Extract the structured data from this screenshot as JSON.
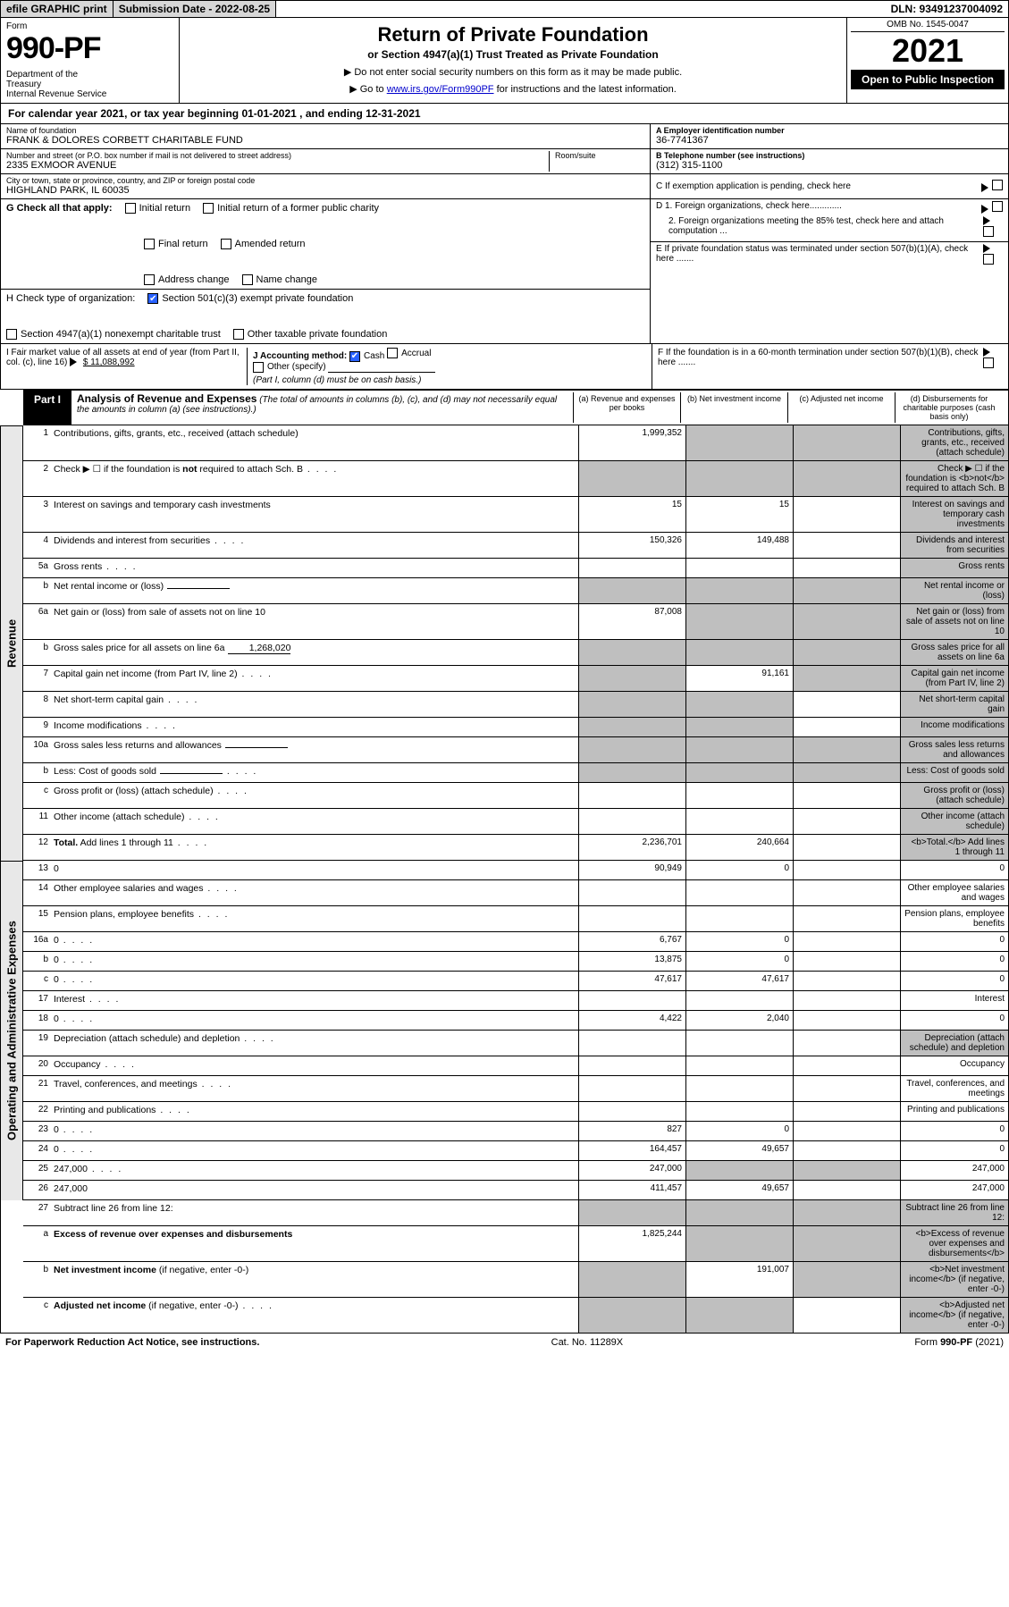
{
  "topbar": {
    "efile": "efile GRAPHIC print",
    "submission_label": "Submission Date - 2022-08-25",
    "dln": "DLN: 93491237004092"
  },
  "header": {
    "form_label": "Form",
    "form_number": "990-PF",
    "dept": "Department of the Treasury\nInternal Revenue Service",
    "title": "Return of Private Foundation",
    "subtitle": "or Section 4947(a)(1) Trust Treated as Private Foundation",
    "note1": "▶ Do not enter social security numbers on this form as it may be made public.",
    "note2_prefix": "▶ Go to ",
    "note2_link": "www.irs.gov/Form990PF",
    "note2_suffix": " for instructions and the latest information.",
    "omb": "OMB No. 1545-0047",
    "year": "2021",
    "open_public": "Open to Public Inspection"
  },
  "cal_year": "For calendar year 2021, or tax year beginning 01-01-2021             , and ending 12-31-2021",
  "id": {
    "name_lbl": "Name of foundation",
    "name": "FRANK & DOLORES CORBETT CHARITABLE FUND",
    "addr_lbl": "Number and street (or P.O. box number if mail is not delivered to street address)",
    "addr": "2335 EXMOOR AVENUE",
    "room_lbl": "Room/suite",
    "city_lbl": "City or town, state or province, country, and ZIP or foreign postal code",
    "city": "HIGHLAND PARK, IL  60035",
    "a_lbl": "A Employer identification number",
    "a_val": "36-7741367",
    "b_lbl": "B Telephone number (see instructions)",
    "b_val": "(312) 315-1100",
    "c_lbl": "C If exemption application is pending, check here",
    "d1_lbl": "D 1. Foreign organizations, check here.............",
    "d2_lbl": "2. Foreign organizations meeting the 85% test, check here and attach computation ...",
    "e_lbl": "E  If private foundation status was terminated under section 507(b)(1)(A), check here .......",
    "f_lbl": "F  If the foundation is in a 60-month termination under section 507(b)(1)(B), check here .......",
    "g_lbl": "G Check all that apply:",
    "g_opts": [
      "Initial return",
      "Initial return of a former public charity",
      "Final return",
      "Amended return",
      "Address change",
      "Name change"
    ],
    "h_lbl": "H Check type of organization:",
    "h1": "Section 501(c)(3) exempt private foundation",
    "h2": "Section 4947(a)(1) nonexempt charitable trust",
    "h3": "Other taxable private foundation",
    "i_lbl": "I Fair market value of all assets at end of year (from Part II, col. (c), line 16)",
    "i_val": "$  11,088,992",
    "j_lbl": "J Accounting method:",
    "j_cash": "Cash",
    "j_accrual": "Accrual",
    "j_other": "Other (specify)",
    "j_note": "(Part I, column (d) must be on cash basis.)"
  },
  "part1": {
    "tab": "Part I",
    "title": "Analysis of Revenue and Expenses",
    "title_note": "(The total of amounts in columns (b), (c), and (d) may not necessarily equal the amounts in column (a) (see instructions).)",
    "col_a": "(a)   Revenue and expenses per books",
    "col_b": "(b)   Net investment income",
    "col_c": "(c)   Adjusted net income",
    "col_d": "(d)   Disbursements for charitable purposes (cash basis only)"
  },
  "vlabels": {
    "rev": "Revenue",
    "exp": "Operating and Administrative Expenses"
  },
  "rows": [
    {
      "n": "1",
      "d": "Contributions, gifts, grants, etc., received (attach schedule)",
      "a": "1,999,352",
      "b_grey": true,
      "c_grey": true,
      "d_grey": true
    },
    {
      "n": "2",
      "d": "Check ▶ ☐ if the foundation is <b>not</b> required to attach Sch. B",
      "a_grey": true,
      "b_grey": true,
      "c_grey": true,
      "d_grey": true,
      "dots": true
    },
    {
      "n": "3",
      "d": "Interest on savings and temporary cash investments",
      "a": "15",
      "b": "15",
      "d_grey": true
    },
    {
      "n": "4",
      "d": "Dividends and interest from securities",
      "a": "150,326",
      "b": "149,488",
      "d_grey": true,
      "dots": true
    },
    {
      "n": "5a",
      "d": "Gross rents",
      "d_grey": true,
      "dots": true
    },
    {
      "n": "b",
      "d": "Net rental income or (loss)",
      "a_grey": true,
      "b_grey": true,
      "c_grey": true,
      "d_grey": true,
      "inline": ""
    },
    {
      "n": "6a",
      "d": "Net gain or (loss) from sale of assets not on line 10",
      "a": "87,008",
      "b_grey": true,
      "c_grey": true,
      "d_grey": true
    },
    {
      "n": "b",
      "d": "Gross sales price for all assets on line 6a",
      "inline": "1,268,020",
      "a_grey": true,
      "b_grey": true,
      "c_grey": true,
      "d_grey": true
    },
    {
      "n": "7",
      "d": "Capital gain net income (from Part IV, line 2)",
      "a_grey": true,
      "b": "91,161",
      "c_grey": true,
      "d_grey": true,
      "dots": true
    },
    {
      "n": "8",
      "d": "Net short-term capital gain",
      "a_grey": true,
      "b_grey": true,
      "d_grey": true,
      "dots": true
    },
    {
      "n": "9",
      "d": "Income modifications",
      "a_grey": true,
      "b_grey": true,
      "d_grey": true,
      "dots": true
    },
    {
      "n": "10a",
      "d": "Gross sales less returns and allowances",
      "inline": "",
      "a_grey": true,
      "b_grey": true,
      "c_grey": true,
      "d_grey": true
    },
    {
      "n": "b",
      "d": "Less: Cost of goods sold",
      "inline": "",
      "a_grey": true,
      "b_grey": true,
      "c_grey": true,
      "d_grey": true,
      "dots": true
    },
    {
      "n": "c",
      "d": "Gross profit or (loss) (attach schedule)",
      "d_grey": true,
      "dots": true
    },
    {
      "n": "11",
      "d": "Other income (attach schedule)",
      "d_grey": true,
      "dots": true
    },
    {
      "n": "12",
      "d": "<b>Total.</b> Add lines 1 through 11",
      "a": "2,236,701",
      "b": "240,664",
      "d_grey": true,
      "dots": true
    }
  ],
  "exp_rows": [
    {
      "n": "13",
      "d": "0",
      "a": "90,949",
      "b": "0"
    },
    {
      "n": "14",
      "d": "Other employee salaries and wages",
      "dots": true
    },
    {
      "n": "15",
      "d": "Pension plans, employee benefits",
      "dots": true
    },
    {
      "n": "16a",
      "d": "0",
      "a": "6,767",
      "b": "0",
      "dots": true
    },
    {
      "n": "b",
      "d": "0",
      "a": "13,875",
      "b": "0",
      "dots": true
    },
    {
      "n": "c",
      "d": "0",
      "a": "47,617",
      "b": "47,617",
      "dots": true
    },
    {
      "n": "17",
      "d": "Interest",
      "dots": true
    },
    {
      "n": "18",
      "d": "0",
      "a": "4,422",
      "b": "2,040",
      "dots": true
    },
    {
      "n": "19",
      "d": "Depreciation (attach schedule) and depletion",
      "d_grey": true,
      "dots": true
    },
    {
      "n": "20",
      "d": "Occupancy",
      "dots": true
    },
    {
      "n": "21",
      "d": "Travel, conferences, and meetings",
      "dots": true
    },
    {
      "n": "22",
      "d": "Printing and publications",
      "dots": true
    },
    {
      "n": "23",
      "d": "0",
      "a": "827",
      "b": "0",
      "dots": true
    },
    {
      "n": "24",
      "d": "0",
      "a": "164,457",
      "b": "49,657",
      "dots": true
    },
    {
      "n": "25",
      "d": "247,000",
      "a": "247,000",
      "b_grey": true,
      "c_grey": true,
      "dots": true
    },
    {
      "n": "26",
      "d": "247,000",
      "a": "411,457",
      "b": "49,657"
    }
  ],
  "final_rows": [
    {
      "n": "27",
      "d": "Subtract line 26 from line 12:",
      "a_grey": true,
      "b_grey": true,
      "c_grey": true,
      "d_grey": true
    },
    {
      "n": "a",
      "d": "<b>Excess of revenue over expenses and disbursements</b>",
      "a": "1,825,244",
      "b_grey": true,
      "c_grey": true,
      "d_grey": true
    },
    {
      "n": "b",
      "d": "<b>Net investment income</b> (if negative, enter -0-)",
      "a_grey": true,
      "b": "191,007",
      "c_grey": true,
      "d_grey": true
    },
    {
      "n": "c",
      "d": "<b>Adjusted net income</b> (if negative, enter -0-)",
      "a_grey": true,
      "b_grey": true,
      "d_grey": true,
      "dots": true
    }
  ],
  "footer": {
    "left": "For Paperwork Reduction Act Notice, see instructions.",
    "mid": "Cat. No. 11289X",
    "right": "Form 990-PF (2021)"
  },
  "colors": {
    "grey_cell": "#bfbfbf",
    "black": "#000000",
    "link": "#0000cc",
    "check_blue": "#2962ff"
  }
}
